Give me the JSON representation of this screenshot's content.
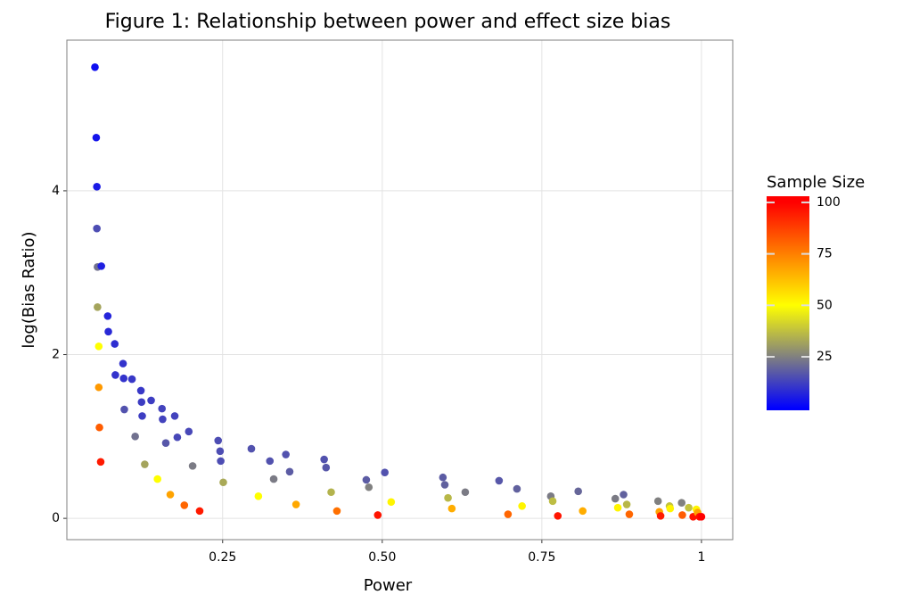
{
  "chart_data": {
    "type": "scatter",
    "title": "Figure 1: Relationship between power and effect size bias",
    "x_label": "Power",
    "y_label": "log(Bias Ratio)",
    "x": [
      0.05,
      0.052,
      0.053,
      0.053,
      0.054,
      0.06,
      0.054,
      0.056,
      0.056,
      0.057,
      0.059,
      0.07,
      0.071,
      0.081,
      0.082,
      0.094,
      0.095,
      0.108,
      0.096,
      0.113,
      0.122,
      0.123,
      0.124,
      0.128,
      0.138,
      0.148,
      0.155,
      0.156,
      0.161,
      0.168,
      0.175,
      0.179,
      0.19,
      0.197,
      0.203,
      0.214,
      0.243,
      0.246,
      0.247,
      0.251,
      0.295,
      0.306,
      0.324,
      0.33,
      0.349,
      0.355,
      0.365,
      0.409,
      0.412,
      0.42,
      0.429,
      0.475,
      0.479,
      0.493,
      0.504,
      0.514,
      0.595,
      0.598,
      0.603,
      0.609,
      0.63,
      0.683,
      0.697,
      0.711,
      0.719,
      0.764,
      0.767,
      0.775,
      0.807,
      0.814,
      0.865,
      0.869,
      0.878,
      0.883,
      0.887,
      0.932,
      0.934,
      0.936,
      0.95,
      0.951,
      0.969,
      0.97,
      0.98,
      0.987,
      0.992,
      0.994,
      0.997,
      1.0
    ],
    "values": [
      5.51,
      4.65,
      4.05,
      3.54,
      3.07,
      3.08,
      2.58,
      2.1,
      1.6,
      1.11,
      0.69,
      2.47,
      2.28,
      2.13,
      1.75,
      1.89,
      1.71,
      1.7,
      1.33,
      1.0,
      1.56,
      1.42,
      1.25,
      0.66,
      1.44,
      0.48,
      1.34,
      1.21,
      0.92,
      0.29,
      1.25,
      0.99,
      0.16,
      1.06,
      0.64,
      0.09,
      0.95,
      0.82,
      0.7,
      0.44,
      0.85,
      0.27,
      0.7,
      0.48,
      0.78,
      0.57,
      0.17,
      0.72,
      0.62,
      0.32,
      0.09,
      0.47,
      0.38,
      0.04,
      0.56,
      0.2,
      0.5,
      0.41,
      0.25,
      0.12,
      0.32,
      0.46,
      0.05,
      0.36,
      0.15,
      0.27,
      0.21,
      0.03,
      0.33,
      0.09,
      0.24,
      0.13,
      0.29,
      0.17,
      0.05,
      0.21,
      0.08,
      0.03,
      0.15,
      0.12,
      0.19,
      0.04,
      0.13,
      0.02,
      0.11,
      0.07,
      0.02,
      0.02
    ],
    "color_values": [
      3,
      4,
      5,
      15,
      22,
      6,
      32,
      50,
      70,
      82,
      95,
      7,
      8,
      9,
      10,
      10,
      10,
      11,
      16,
      22,
      11,
      12,
      12,
      32,
      12,
      50,
      13,
      13,
      17,
      68,
      13,
      14,
      80,
      14,
      24,
      95,
      15,
      15,
      15,
      33,
      16,
      50,
      16,
      24,
      16,
      18,
      67,
      16,
      17,
      35,
      78,
      18,
      25,
      96,
      16,
      52,
      18,
      19,
      36,
      66,
      24,
      17,
      80,
      19,
      52,
      24,
      37,
      96,
      20,
      66,
      24,
      52,
      19,
      36,
      80,
      25,
      68,
      95,
      38,
      52,
      25,
      82,
      38,
      96,
      52,
      68,
      97,
      100
    ],
    "xlim": [
      0.006,
      1.049
    ],
    "ylim": [
      -0.26,
      5.84
    ],
    "xticks": [
      0.25,
      {
        "value": 0.5,
        "label": "0.50"
      },
      0.75,
      1
    ],
    "yticks": [
      0,
      2,
      4
    ],
    "grid": true,
    "colorbar": {
      "title": "Sample Size",
      "lim": [
        -1,
        103
      ],
      "ticks": [
        25,
        50,
        75,
        100
      ],
      "stops": [
        {
          "value": 0,
          "color": "#0000ff"
        },
        {
          "value": 25,
          "color": "#808080"
        },
        {
          "value": 50,
          "color": "#ffff00"
        },
        {
          "value": 100,
          "color": "#ff0000"
        }
      ]
    }
  }
}
